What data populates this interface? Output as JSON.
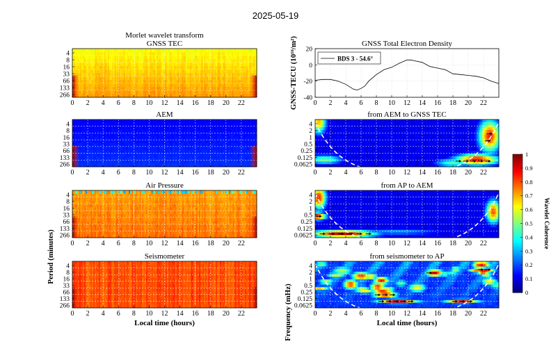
{
  "figure": {
    "date_title": "2025-05-19"
  },
  "chart_data": [
    {
      "type": "heatmap",
      "id": "gnss_tec_cwt",
      "title_line1": "Morlet wavelet transform",
      "title": "GNSS TEC",
      "xlabel": "",
      "ylabel": "",
      "xticks": [
        "0",
        "2",
        "4",
        "6",
        "8",
        "10",
        "12",
        "14",
        "16",
        "18",
        "20",
        "22"
      ],
      "yticks": [
        "4",
        "8",
        "16",
        "33",
        "66",
        "133",
        "266"
      ],
      "xlim": [
        0,
        24
      ],
      "base_color": "yellow-orange",
      "dominant_level": 0.62
    },
    {
      "type": "heatmap",
      "id": "aem_cwt",
      "title": "AEM",
      "xticks": [
        "0",
        "2",
        "4",
        "6",
        "8",
        "10",
        "12",
        "14",
        "16",
        "18",
        "20",
        "22"
      ],
      "yticks": [
        "4",
        "8",
        "16",
        "33",
        "66",
        "133",
        "266"
      ],
      "xlim": [
        0,
        24
      ],
      "base_color": "blue",
      "dominant_level": 0.12
    },
    {
      "type": "heatmap",
      "id": "air_pressure_cwt",
      "title": "Air Pressure",
      "xticks": [
        "0",
        "2",
        "4",
        "6",
        "8",
        "10",
        "12",
        "14",
        "16",
        "18",
        "20",
        "22"
      ],
      "yticks": [
        "4",
        "8",
        "16",
        "33",
        "66",
        "133",
        "266"
      ],
      "xlim": [
        0,
        24
      ],
      "base_color": "orange",
      "dominant_level": 0.72
    },
    {
      "type": "heatmap",
      "id": "seismometer_cwt",
      "title": "Seismometer",
      "xlabel": "Local time (hours)",
      "ylabel": "Period (minutes)",
      "xticks": [
        "0",
        "2",
        "4",
        "6",
        "8",
        "10",
        "12",
        "14",
        "16",
        "18",
        "20",
        "22"
      ],
      "yticks": [
        "4",
        "8",
        "16",
        "33",
        "66",
        "133",
        "266"
      ],
      "xlim": [
        0,
        24
      ],
      "base_color": "orange-red",
      "dominant_level": 0.8
    },
    {
      "type": "line",
      "id": "gnss_tec_series",
      "title": "GNSS Total Electron Density",
      "ylabel": "GNSS-TECU (10^16/m^2)",
      "legend": "BDS 3 - 54.6°",
      "legend_position": "top-left",
      "xlim": [
        0,
        24
      ],
      "ylim": [
        -40,
        20
      ],
      "xticks": [
        "0",
        "2",
        "4",
        "6",
        "8",
        "10",
        "12",
        "14",
        "16",
        "18",
        "20",
        "22"
      ],
      "yticks": [
        "-40",
        "-20",
        "0",
        "20"
      ],
      "x": [
        0,
        1,
        2,
        3,
        4,
        4.5,
        5,
        5.5,
        6,
        6.5,
        7,
        8,
        9,
        10,
        11,
        12,
        12.5,
        13,
        14,
        15,
        16,
        17,
        18,
        19,
        20,
        21,
        22,
        23,
        24
      ],
      "y": [
        -19,
        -18,
        -18,
        -20,
        -24,
        -27,
        -30,
        -31,
        -29,
        -26,
        -20,
        -12,
        -6,
        -3,
        2,
        6,
        6,
        5,
        3,
        -2,
        -4,
        -6,
        -11,
        -12,
        -13,
        -14,
        -16,
        -20,
        -23
      ]
    },
    {
      "type": "heatmap",
      "id": "coh_aem_tec",
      "title": "from AEM to GNSS TEC",
      "yticks": [
        "4",
        "2",
        "1",
        "0.5",
        "0.25",
        "0.125",
        "0.0625"
      ],
      "xticks": [
        "0",
        "2",
        "4",
        "6",
        "8",
        "10",
        "12",
        "14",
        "16",
        "18",
        "20",
        "22"
      ],
      "xlim": [
        0,
        24
      ],
      "base_color": "blue",
      "dominant_level": 0.08
    },
    {
      "type": "heatmap",
      "id": "coh_ap_aem",
      "title": "from AP to AEM",
      "yticks": [
        "4",
        "2",
        "1",
        "0.5",
        "0.25",
        "0.125",
        "0.0625"
      ],
      "xticks": [
        "0",
        "2",
        "4",
        "6",
        "8",
        "10",
        "12",
        "14",
        "16",
        "18",
        "20",
        "22"
      ],
      "xlim": [
        0,
        24
      ],
      "base_color": "blue",
      "dominant_level": 0.08
    },
    {
      "type": "heatmap",
      "id": "coh_seis_ap",
      "title": "from seismometer to AP",
      "xlabel": "Local time (hours)",
      "ylabel": "Frequency (mHz)",
      "yticks": [
        "4",
        "2",
        "1",
        "0.5",
        "0.25",
        "0.125",
        "0.0625"
      ],
      "xticks": [
        "0",
        "2",
        "4",
        "6",
        "8",
        "10",
        "12",
        "14",
        "16",
        "18",
        "20",
        "22"
      ],
      "xlim": [
        0,
        24
      ],
      "base_color": "blue",
      "dominant_level": 0.15
    },
    {
      "type": "colorbar",
      "id": "coherence_colorbar",
      "label": "Wavelet Coherence",
      "range": [
        0,
        1
      ],
      "ticks": [
        "0",
        "0.1",
        "0.2",
        "0.3",
        "0.4",
        "0.5",
        "0.6",
        "0.7",
        "0.8",
        "0.9",
        "1"
      ]
    }
  ]
}
